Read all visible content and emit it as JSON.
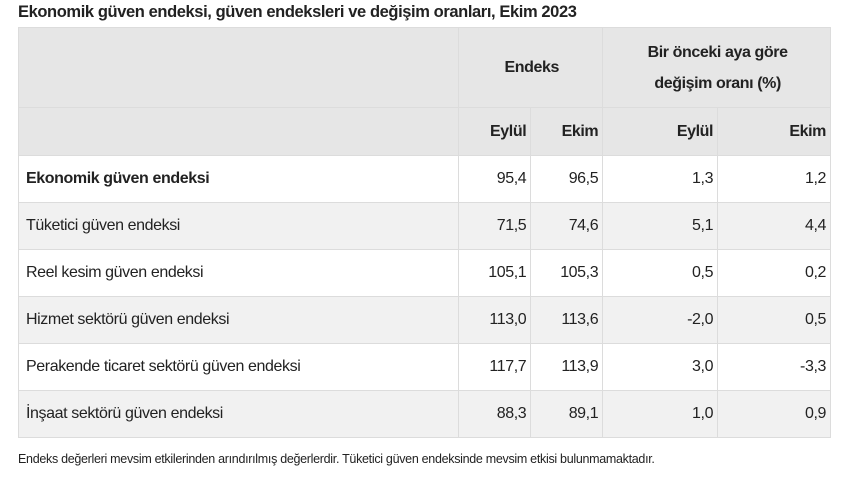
{
  "title": "Ekonomik güven endeksi, güven endeksleri ve değişim oranları, Ekim 2023",
  "header": {
    "group1": "Endeks",
    "group2_line1": "Bir önceki aya göre",
    "group2_line2": "değişim oranı (%)",
    "sub": [
      "Eylül",
      "Ekim",
      "Eylül",
      "Ekim"
    ]
  },
  "rows": [
    {
      "label": "Ekonomik güven endeksi",
      "values": [
        "95,4",
        "96,5",
        "1,3",
        "1,2"
      ]
    },
    {
      "label": "Tüketici güven endeksi",
      "values": [
        "71,5",
        "74,6",
        "5,1",
        "4,4"
      ]
    },
    {
      "label": "Reel kesim güven endeksi",
      "values": [
        "105,1",
        "105,3",
        "0,5",
        "0,2"
      ]
    },
    {
      "label": "Hizmet sektörü güven endeksi",
      "values": [
        "113,0",
        "113,6",
        "-2,0",
        "0,5"
      ]
    },
    {
      "label": "Perakende ticaret sektörü güven endeksi",
      "values": [
        "117,7",
        "113,9",
        "3,0",
        "-3,3"
      ]
    },
    {
      "label": "İnşaat sektörü güven endeksi",
      "values": [
        "88,3",
        "89,1",
        "1,0",
        "0,9"
      ]
    }
  ],
  "note": "Endeks değerleri mevsim etkilerinden arındırılmış değerlerdir. Tüketici güven endeksinde mevsim etkisi bulunmamaktadır."
}
